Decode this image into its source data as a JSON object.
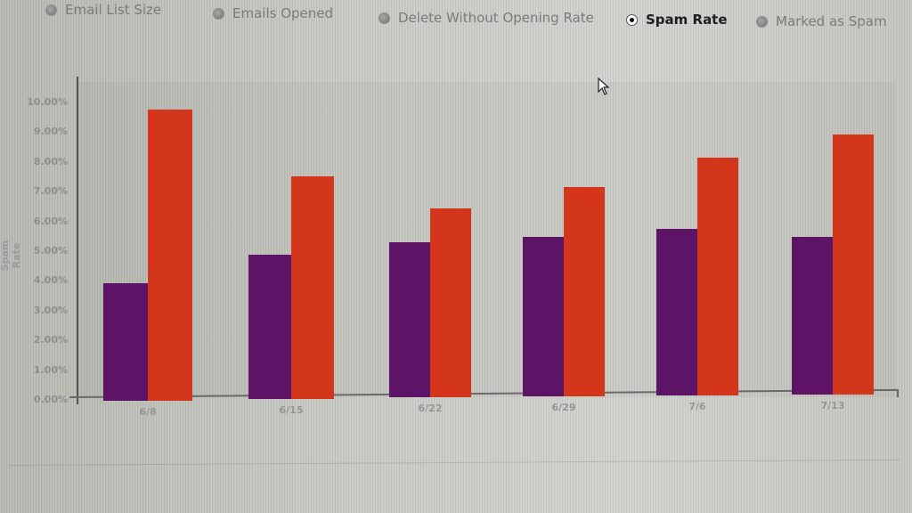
{
  "metric_selector": {
    "options": [
      {
        "label": "Email List Size",
        "selected": false
      },
      {
        "label": "Emails Opened",
        "selected": false
      },
      {
        "label": "Delete Without Opening Rate",
        "selected": false
      },
      {
        "label": "Spam Rate",
        "selected": true
      },
      {
        "label": "Marked as Spam",
        "selected": false
      }
    ]
  },
  "colors": {
    "series_1": "#5e1466",
    "series_2": "#d4361c"
  },
  "chart_data": {
    "type": "bar",
    "title": "",
    "xlabel": "",
    "ylabel": "Spam Rate",
    "ylim": [
      0,
      10
    ],
    "y_ticks": [
      "0.00%",
      "1.00%",
      "2.00%",
      "3.00%",
      "4.00%",
      "5.00%",
      "6.00%",
      "7.00%",
      "8.00%",
      "9.00%",
      "10.00%"
    ],
    "categories": [
      "6/8",
      "6/15",
      "6/22",
      "6/29",
      "7/6",
      "7/13"
    ],
    "series": [
      {
        "name": "Series 1 (purple, unlabeled)",
        "color": "#5e1466",
        "values": [
          3.95,
          4.85,
          5.2,
          5.35,
          5.6,
          5.3
        ]
      },
      {
        "name": "Series 2 (orange, unlabeled)",
        "color": "#d4361c",
        "values": [
          9.8,
          7.5,
          6.35,
          7.05,
          8.0,
          8.75
        ]
      }
    ],
    "grid": false,
    "legend": "none (series are not labeled in the image)",
    "value_note": "Values estimated from a photographed, slightly rotated screen; approx. ±0.1–0.2 percentage points."
  }
}
